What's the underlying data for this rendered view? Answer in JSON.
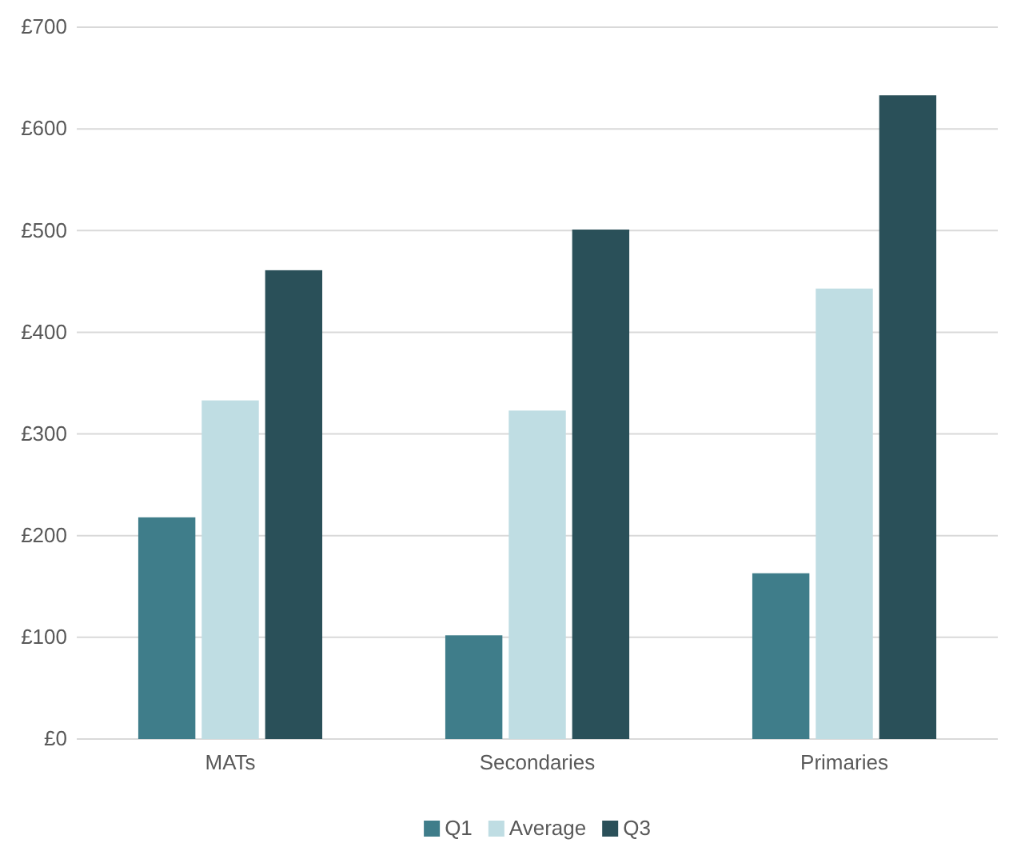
{
  "chart_data": {
    "type": "bar",
    "categories": [
      "MATs",
      "Secondaries",
      "Primaries"
    ],
    "series": [
      {
        "name": "Q1",
        "color": "#3f7d8a",
        "values": [
          218,
          102,
          163
        ]
      },
      {
        "name": "Average",
        "color": "#bfdde3",
        "values": [
          333,
          323,
          443
        ]
      },
      {
        "name": "Q3",
        "color": "#2a5059",
        "values": [
          461,
          501,
          633
        ]
      }
    ],
    "ylim": [
      0,
      700
    ],
    "yticks": [
      {
        "value": 0,
        "label": "£0"
      },
      {
        "value": 100,
        "label": "£100"
      },
      {
        "value": 200,
        "label": "£200"
      },
      {
        "value": 300,
        "label": "£300"
      },
      {
        "value": 400,
        "label": "£400"
      },
      {
        "value": 500,
        "label": "£500"
      },
      {
        "value": 600,
        "label": "£600"
      },
      {
        "value": 700,
        "label": "£700"
      }
    ],
    "grid": "y",
    "legend": "bottom"
  }
}
